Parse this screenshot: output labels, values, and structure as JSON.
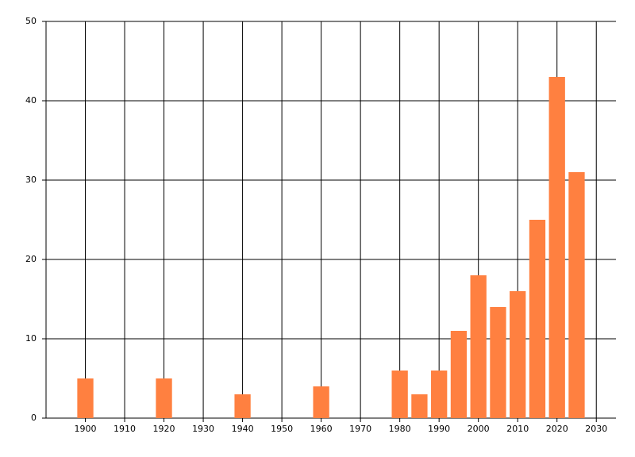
{
  "chart_data": {
    "type": "bar",
    "x": [
      1900,
      1920,
      1940,
      1960,
      1980,
      1985,
      1990,
      1995,
      2000,
      2005,
      2010,
      2015,
      2020,
      2025
    ],
    "values": [
      5,
      5,
      3,
      4,
      6,
      3,
      6,
      11,
      18,
      14,
      16,
      25,
      43,
      31
    ],
    "color": "#ff8040",
    "xlim": [
      1890,
      2035
    ],
    "xticks": [
      1900,
      1910,
      1920,
      1930,
      1940,
      1950,
      1960,
      1970,
      1980,
      1990,
      2000,
      2010,
      2020,
      2030
    ],
    "ylim": [
      0,
      50
    ],
    "yticks": [
      0,
      10,
      20,
      30,
      40,
      50
    ],
    "grid": true
  }
}
